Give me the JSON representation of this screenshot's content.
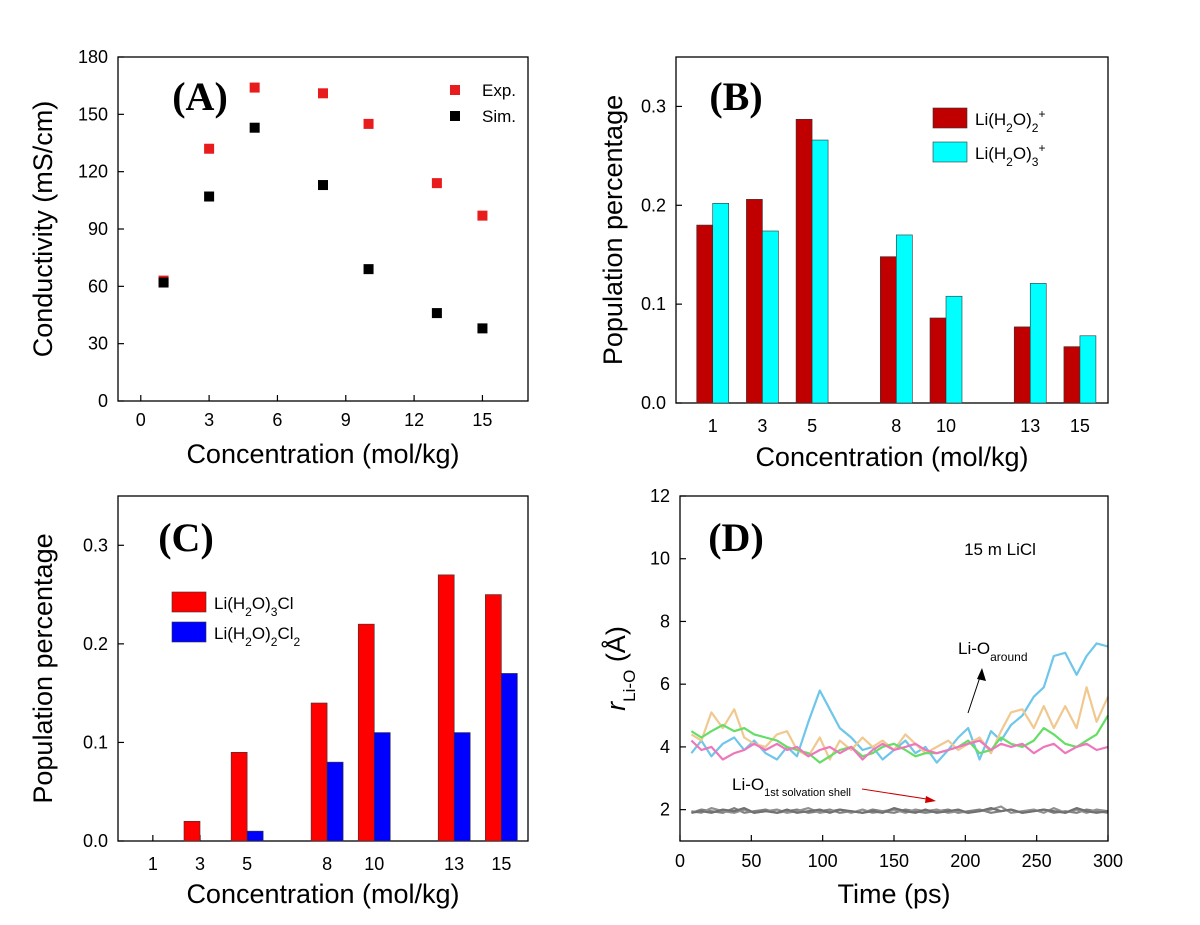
{
  "chart_data": [
    {
      "panel": "(A)",
      "type": "scatter",
      "xlabel": "Concentration (mol/kg)",
      "ylabel": "Conductivity (mS/cm)",
      "xlim": [
        -1,
        17
      ],
      "ylim": [
        0,
        180
      ],
      "xticks": [
        0,
        3,
        6,
        9,
        12,
        15
      ],
      "yticks": [
        0,
        30,
        60,
        90,
        120,
        150,
        180
      ],
      "legend_position": "top-right",
      "series": [
        {
          "name": "Exp.",
          "color": "#e81c1c",
          "x": [
            1,
            3,
            5,
            8,
            10,
            13,
            15
          ],
          "y": [
            63,
            132,
            164,
            161,
            145,
            114,
            97
          ]
        },
        {
          "name": "Sim.",
          "color": "#000000",
          "x": [
            1,
            3,
            5,
            8,
            10,
            13,
            15
          ],
          "y": [
            62,
            107,
            143,
            113,
            69,
            46,
            38
          ]
        }
      ]
    },
    {
      "panel": "(B)",
      "type": "bar",
      "xlabel": "Concentration (mol/kg)",
      "ylabel": "Population percentage",
      "ylim": [
        0,
        0.35
      ],
      "yticks": [
        "0.0",
        "0.1",
        "0.2",
        "0.3"
      ],
      "categories": [
        "1",
        "3",
        "5",
        "8",
        "10",
        "13",
        "15"
      ],
      "legend_position": "top-right",
      "series": [
        {
          "name": "Li(H2O)2+",
          "label_main": "Li(H",
          "label_sub1": "2",
          "label_mid": "O)",
          "label_sub2": "2",
          "label_sup": "+",
          "color": "#c00000",
          "values": [
            0.18,
            0.206,
            0.287,
            0.148,
            0.086,
            0.077,
            0.057
          ]
        },
        {
          "name": "Li(H2O)3+",
          "label_main": "Li(H",
          "label_sub1": "2",
          "label_mid": "O)",
          "label_sub2": "3",
          "label_sup": "+",
          "color": "#00ffff",
          "values": [
            0.202,
            0.174,
            0.266,
            0.17,
            0.108,
            0.121,
            0.068
          ]
        }
      ]
    },
    {
      "panel": "(C)",
      "type": "bar",
      "xlabel": "Concentration (mol/kg)",
      "ylabel": "Population percentage",
      "ylim": [
        0,
        0.35
      ],
      "yticks": [
        "0.0",
        "0.1",
        "0.2",
        "0.3"
      ],
      "categories": [
        "1",
        "3",
        "5",
        "8",
        "10",
        "13",
        "15"
      ],
      "legend_position": "top-left",
      "series": [
        {
          "name": "Li(H2O)3Cl",
          "label_main": "Li(H",
          "label_sub1": "2",
          "label_mid": "O)",
          "label_sub2": "3",
          "label_tail": "Cl",
          "color": "#ff0000",
          "values": [
            0.0,
            0.02,
            0.09,
            0.14,
            0.22,
            0.27,
            0.25
          ]
        },
        {
          "name": "Li(H2O)2Cl2",
          "label_main": "Li(H",
          "label_sub1": "2",
          "label_mid": "O)",
          "label_sub2": "2",
          "label_tail": "Cl",
          "label_sub3": "2",
          "color": "#0000ff",
          "values": [
            0.0,
            0.0,
            0.01,
            0.08,
            0.11,
            0.11,
            0.17
          ]
        }
      ]
    },
    {
      "panel": "(D)",
      "type": "line",
      "xlabel": "Time (ps)",
      "ylabel_main": "r",
      "ylabel_sub": "Li-O",
      "ylabel_unit": " (Å)",
      "xlim": [
        0,
        300
      ],
      "ylim": [
        1,
        12
      ],
      "xticks": [
        0,
        50,
        100,
        150,
        200,
        250,
        300
      ],
      "yticks": [
        2,
        4,
        6,
        8,
        10,
        12
      ],
      "inset_text": "15 m LiCl",
      "annotations": [
        {
          "main": "Li-O",
          "sub": "around",
          "color": "#000000"
        },
        {
          "main": "Li-O",
          "sub": "1st solvation shell",
          "color": "#cc0000"
        }
      ],
      "x": [
        8,
        15,
        22,
        30,
        38,
        45,
        52,
        60,
        68,
        75,
        82,
        90,
        98,
        105,
        112,
        120,
        128,
        135,
        142,
        150,
        158,
        165,
        172,
        180,
        188,
        195,
        202,
        210,
        218,
        225,
        232,
        240,
        248,
        255,
        262,
        270,
        278,
        285,
        292,
        300
      ],
      "series": [
        {
          "name": "around-blue",
          "color": "#6ec6ea",
          "y": [
            3.8,
            4.2,
            3.7,
            4.1,
            4.3,
            3.9,
            4.2,
            3.8,
            3.6,
            4.0,
            3.7,
            4.8,
            5.8,
            5.2,
            4.6,
            4.3,
            3.9,
            4.0,
            3.6,
            3.9,
            4.2,
            3.8,
            4.0,
            3.5,
            3.9,
            4.3,
            4.6,
            3.6,
            4.5,
            4.2,
            4.7,
            5.0,
            5.6,
            5.9,
            6.9,
            7.0,
            6.3,
            6.9,
            7.3,
            7.2
          ]
        },
        {
          "name": "around-tan",
          "color": "#f0c890",
          "y": [
            4.4,
            4.2,
            5.1,
            4.6,
            5.2,
            4.3,
            4.1,
            4.0,
            4.4,
            4.5,
            3.9,
            3.7,
            4.3,
            3.6,
            4.2,
            3.9,
            4.3,
            4.0,
            4.2,
            3.9,
            4.4,
            4.1,
            3.8,
            4.0,
            4.2,
            3.9,
            4.1,
            4.3,
            3.8,
            4.5,
            5.1,
            5.2,
            4.6,
            5.3,
            4.6,
            5.3,
            4.6,
            5.9,
            4.8,
            5.6
          ]
        },
        {
          "name": "around-green",
          "color": "#66dd66",
          "y": [
            4.5,
            4.3,
            4.5,
            4.7,
            4.5,
            4.6,
            4.4,
            4.3,
            4.2,
            4.0,
            3.9,
            3.8,
            3.5,
            3.7,
            3.9,
            4.0,
            3.7,
            3.8,
            4.0,
            4.1,
            3.9,
            3.7,
            3.8,
            3.8,
            3.9,
            4.0,
            4.2,
            3.8,
            3.9,
            4.3,
            4.1,
            4.0,
            4.2,
            4.6,
            4.4,
            4.1,
            4.0,
            4.2,
            4.4,
            5.0
          ]
        },
        {
          "name": "around-pink",
          "color": "#ee77bb",
          "y": [
            4.2,
            3.9,
            4.0,
            3.6,
            3.8,
            3.9,
            4.1,
            3.9,
            4.1,
            3.9,
            4.0,
            3.7,
            3.9,
            4.0,
            3.8,
            4.0,
            3.6,
            3.9,
            4.1,
            3.9,
            4.0,
            4.1,
            3.9,
            3.8,
            3.9,
            4.0,
            4.1,
            4.2,
            3.9,
            4.1,
            4.0,
            4.1,
            3.8,
            4.0,
            4.1,
            3.8,
            4.0,
            4.1,
            3.9,
            4.0
          ]
        },
        {
          "name": "shell-gray-1",
          "color": "#808080",
          "y": [
            1.9,
            2.0,
            1.95,
            1.9,
            2.05,
            1.9,
            1.95,
            2.0,
            1.9,
            1.95,
            2.0,
            1.9,
            1.95,
            2.0,
            1.9,
            1.95,
            1.9,
            2.0,
            1.95,
            1.9,
            2.0,
            1.95,
            1.9,
            1.95,
            2.0,
            1.9,
            1.95,
            2.0,
            1.9,
            1.95,
            2.0,
            1.9,
            1.95,
            2.0,
            1.9,
            1.95,
            1.9,
            2.0,
            1.95,
            1.9
          ]
        },
        {
          "name": "shell-gray-2",
          "color": "#909090",
          "y": [
            1.95,
            1.9,
            2.05,
            1.95,
            1.9,
            2.0,
            1.9,
            1.95,
            2.0,
            1.9,
            1.95,
            2.05,
            1.9,
            1.95,
            2.0,
            1.9,
            2.0,
            1.9,
            1.95,
            2.0,
            1.9,
            2.0,
            1.95,
            2.0,
            1.9,
            1.95,
            1.9,
            1.95,
            2.0,
            2.1,
            1.9,
            1.95,
            2.0,
            1.9,
            2.05,
            1.9,
            2.0,
            1.9,
            2.0,
            1.95
          ]
        },
        {
          "name": "shell-gray-3",
          "color": "#707070",
          "y": [
            1.9,
            1.95,
            1.9,
            2.0,
            1.95,
            2.05,
            1.9,
            1.95,
            1.9,
            2.0,
            1.9,
            1.95,
            2.0,
            1.9,
            2.0,
            1.95,
            1.9,
            1.95,
            1.9,
            2.05,
            1.95,
            1.9,
            2.0,
            1.9,
            1.95,
            2.0,
            1.9,
            1.95,
            2.05,
            1.95,
            2.0,
            1.9,
            1.95,
            2.0,
            1.95,
            1.9,
            2.05,
            1.95,
            1.9,
            1.95
          ]
        }
      ]
    }
  ]
}
